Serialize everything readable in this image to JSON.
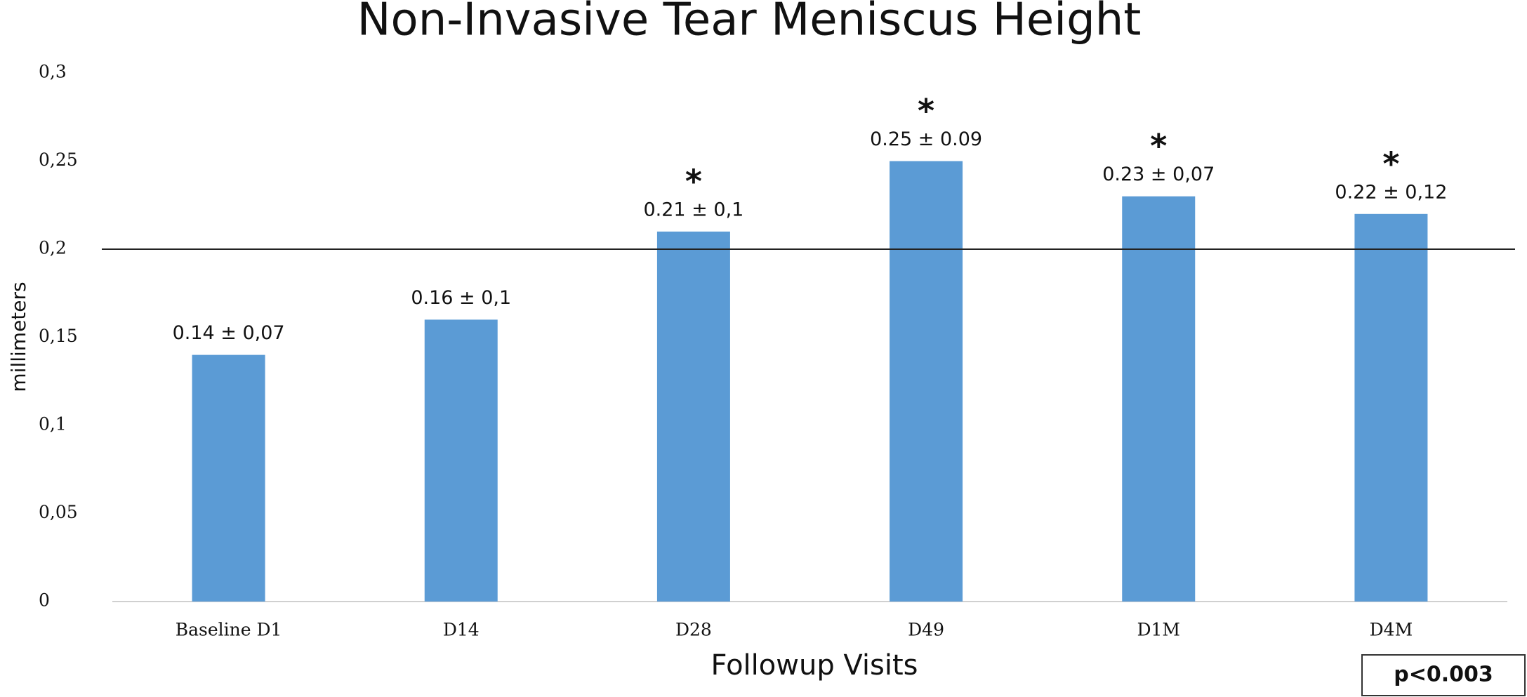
{
  "chart_data": {
    "type": "bar",
    "title": "Non-Invasive Tear  Meniscus  Height",
    "x_label": "Followup  Visits",
    "y_label": "millimeters",
    "categories": [
      "Baseline D1",
      "D14",
      "D28",
      "D49",
      "D1M",
      "D4M"
    ],
    "values": [
      0.14,
      0.16,
      0.21,
      0.25,
      0.23,
      0.22
    ],
    "value_labels": [
      "0.14 ± 0,07",
      "0.16 ± 0,1",
      "0.21 ± 0,1",
      "0.25 ± 0.09",
      "0.23 ± 0,07",
      "0.22 ± 0,12"
    ],
    "significance_marks": [
      null,
      null,
      "*",
      "*",
      "*",
      "*"
    ],
    "color": "#5b9bd5",
    "ylim": [
      0,
      0.3
    ],
    "yticks": [
      0,
      {
        "value": 0.05,
        "label": "0,05"
      },
      {
        "value": 0.1,
        "label": "0,1"
      },
      {
        "value": 0.15,
        "label": "0,15"
      },
      {
        "value": 0.2,
        "label": "0,2"
      },
      {
        "value": 0.25,
        "label": "0,25"
      },
      {
        "value": 0.3,
        "label": "0,3"
      }
    ],
    "reference_line": 0.2,
    "grid": false,
    "p_value": "p<0.003"
  }
}
